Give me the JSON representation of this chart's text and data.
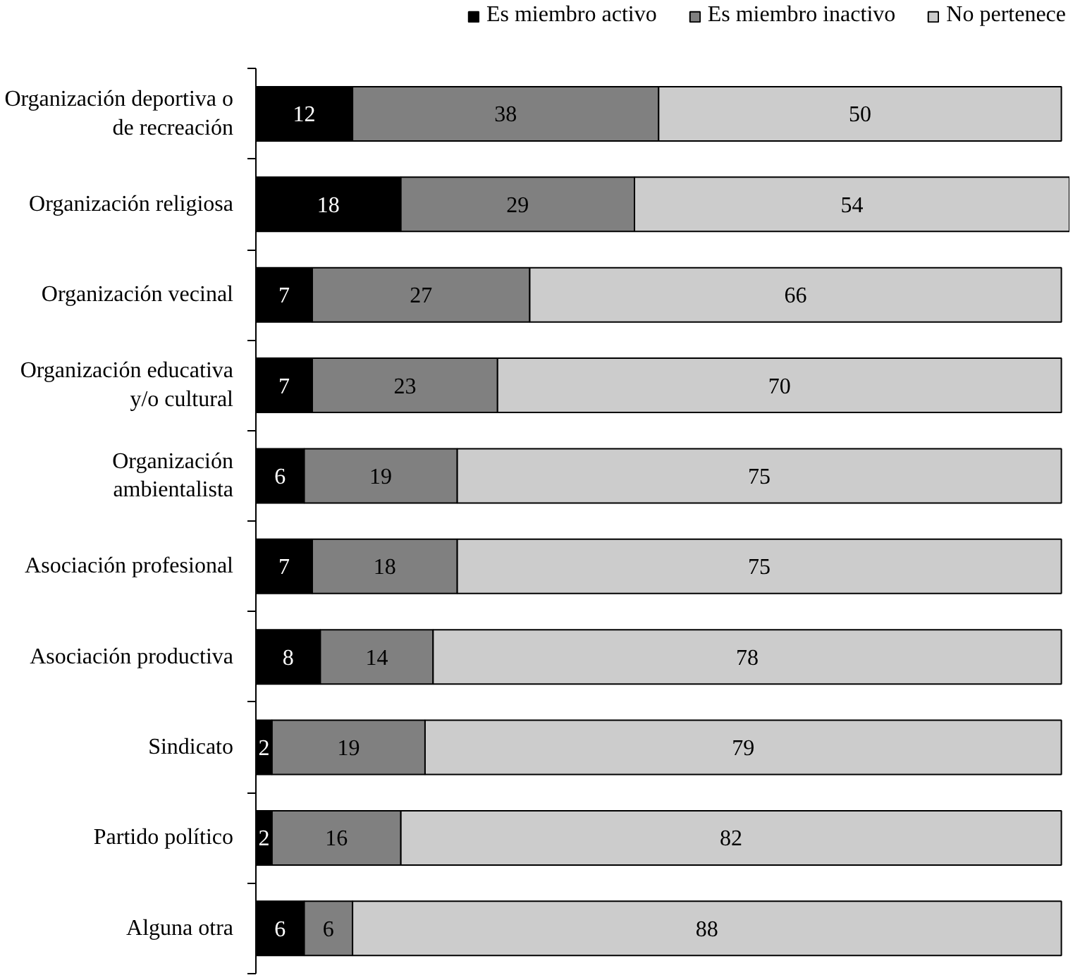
{
  "chart_data": {
    "type": "bar",
    "orientation": "horizontal",
    "stacked": true,
    "data_labels": true,
    "legend": "top",
    "grid": false,
    "categories": [
      "Organización deportiva o de recreación",
      "Organización religiosa",
      "Organización vecinal",
      "Organización educativa y/o cultural",
      "Organización ambientalista",
      "Asociación profesional",
      "Asociación productiva",
      "Sindicato",
      "Partido político",
      "Alguna otra"
    ],
    "series": [
      {
        "name": "Es miembro activo",
        "color": "#000000",
        "values": [
          12,
          18,
          7,
          7,
          6,
          7,
          8,
          2,
          2,
          6
        ]
      },
      {
        "name": "Es miembro inactivo",
        "color": "#808080",
        "values": [
          38,
          29,
          27,
          23,
          19,
          18,
          14,
          19,
          16,
          6
        ]
      },
      {
        "name": "No pertenece",
        "color": "#cccccc",
        "values": [
          50,
          54,
          66,
          70,
          75,
          75,
          78,
          79,
          82,
          88
        ]
      }
    ]
  }
}
